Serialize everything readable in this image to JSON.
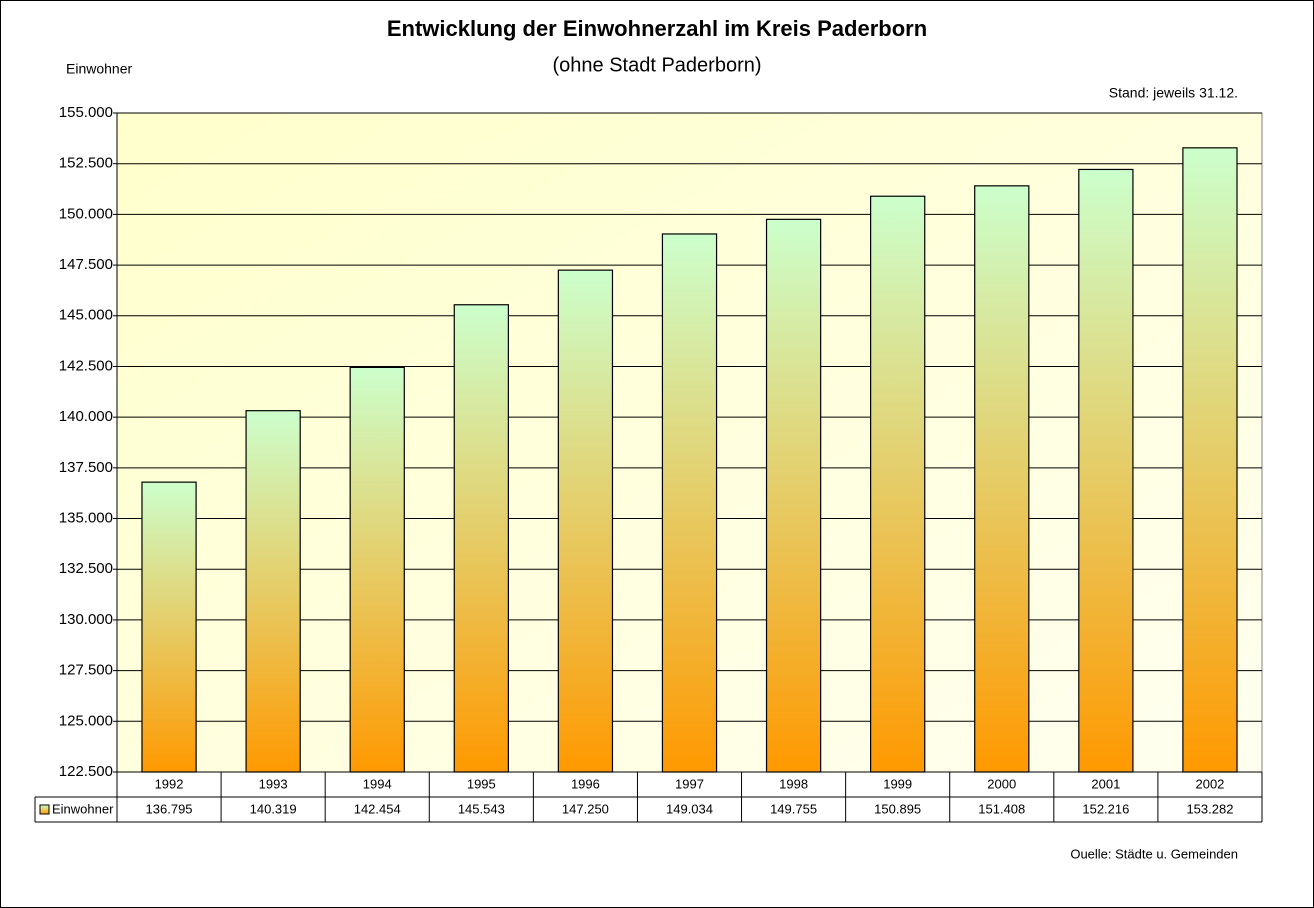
{
  "chart_data": {
    "type": "bar",
    "title": "Entwicklung der Einwohnerzahl im Kreis Paderborn",
    "subtitle": "(ohne Stadt Paderborn)",
    "y_label": "Einwohner",
    "annotation": "Stand: jeweils 31.12.",
    "source": "Ouelle: Städte u. Gemeinden",
    "categories": [
      "1992",
      "1993",
      "1994",
      "1995",
      "1996",
      "1997",
      "1998",
      "1999",
      "2000",
      "2001",
      "2002"
    ],
    "series": [
      {
        "name": "Einwohner",
        "color": "#ff9900",
        "values": [
          136795,
          140319,
          142454,
          145543,
          147250,
          149034,
          149755,
          150895,
          151408,
          152216,
          153282
        ],
        "value_labels": [
          "136.795",
          "140.319",
          "142.454",
          "145.543",
          "147.250",
          "149.034",
          "149.755",
          "150.895",
          "151.408",
          "152.216",
          "153.282"
        ]
      }
    ],
    "ylim": [
      122500,
      155000
    ],
    "yticks": [
      {
        "value": 122500,
        "label": "122.500"
      },
      {
        "value": 125000,
        "label": "125.000"
      },
      {
        "value": 127500,
        "label": "127.500"
      },
      {
        "value": 130000,
        "label": "130.000"
      },
      {
        "value": 132500,
        "label": "132.500"
      },
      {
        "value": 135000,
        "label": "135.000"
      },
      {
        "value": 137500,
        "label": "137.500"
      },
      {
        "value": 140000,
        "label": "140.000"
      },
      {
        "value": 142500,
        "label": "142.500"
      },
      {
        "value": 145000,
        "label": "145.000"
      },
      {
        "value": 147500,
        "label": "147.500"
      },
      {
        "value": 150000,
        "label": "150.000"
      },
      {
        "value": 152500,
        "label": "152.500"
      },
      {
        "value": 155000,
        "label": "155.000"
      }
    ],
    "grid": true,
    "background": "#ffffcc"
  }
}
